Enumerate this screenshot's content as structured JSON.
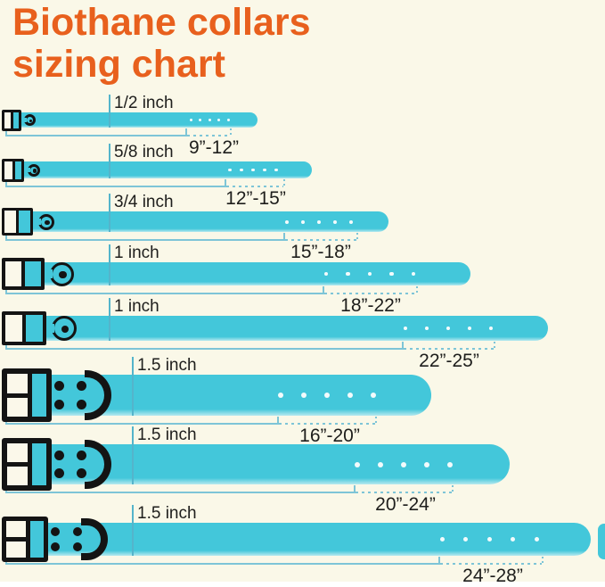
{
  "title": {
    "line1": "Biothane collars",
    "line2": "sizing chart"
  },
  "collars": [
    {
      "width_label": "1/2 inch",
      "length_range": "9”-12”",
      "holes": 5
    },
    {
      "width_label": "5/8 inch",
      "length_range": "12”-15”",
      "holes": 5
    },
    {
      "width_label": "3/4 inch",
      "length_range": "15”-18”",
      "holes": 5
    },
    {
      "width_label": "1 inch",
      "length_range": "18”-22”",
      "holes": 5
    },
    {
      "width_label": "1 inch",
      "length_range": "22”-25”",
      "holes": 5
    },
    {
      "width_label": "1.5 inch",
      "length_range": "16”-20”",
      "holes": 5
    },
    {
      "width_label": "1.5 inch",
      "length_range": "20”-24”",
      "holes": 5
    },
    {
      "width_label": "1.5 inch",
      "length_range": "24”-28”",
      "holes": 5
    }
  ],
  "colors": {
    "background": "#FAF8E8",
    "strap": "#43C7DA",
    "strap_edge_highlight": "#B7E9EF",
    "title": "#E8601D",
    "text": "#1E1E1C",
    "hardware": "#141414",
    "measure_line": "#7EC5D7",
    "width_tick": "#54B4CB",
    "hole": "#F3FBFC",
    "buckle_cell": "#FBF8EA"
  }
}
